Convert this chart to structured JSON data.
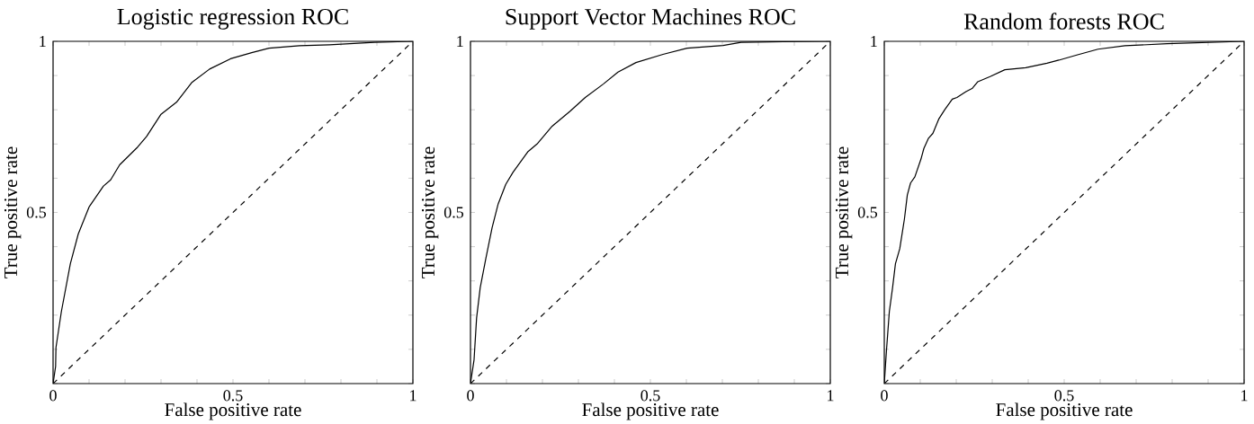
{
  "chart_data": [
    {
      "type": "line",
      "title": "Logistic regression ROC",
      "xlabel": "False positive rate",
      "ylabel": "True positive rate",
      "xlim": [
        0,
        1
      ],
      "ylim": [
        0,
        1
      ],
      "xticks": [
        0,
        {
          "value": 0.1,
          "label": null
        },
        {
          "value": 0.2,
          "label": null
        },
        {
          "value": 0.3,
          "label": null
        },
        {
          "value": 0.4,
          "label": null
        },
        0.5,
        {
          "value": 0.6,
          "label": null
        },
        {
          "value": 0.7,
          "label": null
        },
        {
          "value": 0.8,
          "label": null
        },
        {
          "value": 0.9,
          "label": null
        },
        1
      ],
      "yticks": [
        {
          "value": 0,
          "label": null
        },
        {
          "value": 0.1,
          "label": null
        },
        {
          "value": 0.2,
          "label": null
        },
        {
          "value": 0.3,
          "label": null
        },
        {
          "value": 0.4,
          "label": null
        },
        0.5,
        {
          "value": 0.6,
          "label": null
        },
        {
          "value": 0.7,
          "label": null
        },
        {
          "value": 0.8,
          "label": null
        },
        {
          "value": 0.9,
          "label": null
        },
        1
      ],
      "series": [
        {
          "color": "#000000",
          "line_style": "solid",
          "x": [
            0,
            0.007,
            0.008,
            0.023,
            0.048,
            0.07,
            0.1,
            0.14,
            0.16,
            0.185,
            0.235,
            0.26,
            0.3,
            0.343,
            0.385,
            0.435,
            0.493,
            0.552,
            0.6,
            0.685,
            0.768,
            0.893,
            1
          ],
          "values": [
            0,
            0.05,
            0.105,
            0.21,
            0.35,
            0.437,
            0.516,
            0.577,
            0.595,
            0.639,
            0.691,
            0.722,
            0.787,
            0.822,
            0.879,
            0.919,
            0.949,
            0.967,
            0.98,
            0.987,
            0.99,
            0.997,
            1
          ]
        },
        {
          "color": "#000000",
          "line_style": "dashed",
          "x": [
            0,
            1
          ],
          "values": [
            0,
            1
          ]
        }
      ]
    },
    {
      "type": "line",
      "title": "Support Vector Machines ROC",
      "xlabel": "False positive rate",
      "ylabel": "True positive rate",
      "xlim": [
        0,
        1
      ],
      "ylim": [
        0,
        1
      ],
      "xticks": [
        0,
        {
          "value": 0.1,
          "label": null
        },
        {
          "value": 0.2,
          "label": null
        },
        {
          "value": 0.3,
          "label": null
        },
        {
          "value": 0.4,
          "label": null
        },
        0.5,
        {
          "value": 0.6,
          "label": null
        },
        {
          "value": 0.7,
          "label": null
        },
        {
          "value": 0.8,
          "label": null
        },
        {
          "value": 0.9,
          "label": null
        },
        1
      ],
      "yticks": [
        {
          "value": 0,
          "label": null
        },
        {
          "value": 0.1,
          "label": null
        },
        {
          "value": 0.2,
          "label": null
        },
        {
          "value": 0.3,
          "label": null
        },
        {
          "value": 0.4,
          "label": null
        },
        0.5,
        {
          "value": 0.6,
          "label": null
        },
        {
          "value": 0.7,
          "label": null
        },
        {
          "value": 0.8,
          "label": null
        },
        {
          "value": 0.9,
          "label": null
        },
        1
      ],
      "series": [
        {
          "color": "#000000",
          "line_style": "solid",
          "x": [
            0,
            0.01,
            0.017,
            0.027,
            0.043,
            0.06,
            0.077,
            0.098,
            0.118,
            0.16,
            0.185,
            0.227,
            0.277,
            0.319,
            0.369,
            0.41,
            0.46,
            0.535,
            0.602,
            0.702,
            0.752,
            0.869,
            1
          ],
          "values": [
            0,
            0.07,
            0.192,
            0.28,
            0.367,
            0.455,
            0.525,
            0.582,
            0.617,
            0.678,
            0.7,
            0.752,
            0.796,
            0.836,
            0.875,
            0.91,
            0.938,
            0.962,
            0.98,
            0.988,
            0.997,
            0.999,
            1
          ]
        },
        {
          "color": "#000000",
          "line_style": "dashed",
          "x": [
            0,
            1
          ],
          "values": [
            0,
            1
          ]
        }
      ]
    },
    {
      "type": "line",
      "title": "Random forests ROC",
      "xlabel": "False positive rate",
      "ylabel": "True positive rate",
      "xlim": [
        0,
        1
      ],
      "ylim": [
        0,
        1
      ],
      "xticks": [
        0,
        {
          "value": 0.1,
          "label": null
        },
        {
          "value": 0.2,
          "label": null
        },
        {
          "value": 0.3,
          "label": null
        },
        {
          "value": 0.4,
          "label": null
        },
        0.5,
        {
          "value": 0.6,
          "label": null
        },
        {
          "value": 0.7,
          "label": null
        },
        {
          "value": 0.8,
          "label": null
        },
        {
          "value": 0.9,
          "label": null
        },
        1
      ],
      "yticks": [
        {
          "value": 0,
          "label": null
        },
        {
          "value": 0.1,
          "label": null
        },
        {
          "value": 0.2,
          "label": null
        },
        {
          "value": 0.3,
          "label": null
        },
        {
          "value": 0.4,
          "label": null
        },
        0.5,
        {
          "value": 0.6,
          "label": null
        },
        {
          "value": 0.7,
          "label": null
        },
        {
          "value": 0.8,
          "label": null
        },
        {
          "value": 0.9,
          "label": null
        },
        1
      ],
      "series": [
        {
          "color": "#000000",
          "line_style": "solid",
          "x": [
            0,
            0.006,
            0.014,
            0.023,
            0.031,
            0.043,
            0.056,
            0.064,
            0.073,
            0.085,
            0.102,
            0.11,
            0.123,
            0.135,
            0.152,
            0.168,
            0.189,
            0.202,
            0.227,
            0.244,
            0.26,
            0.294,
            0.335,
            0.393,
            0.452,
            0.485,
            0.535,
            0.594,
            0.669,
            0.786,
            1
          ],
          "values": [
            0,
            0.096,
            0.21,
            0.28,
            0.35,
            0.394,
            0.481,
            0.551,
            0.586,
            0.604,
            0.656,
            0.687,
            0.717,
            0.731,
            0.774,
            0.8,
            0.831,
            0.836,
            0.853,
            0.862,
            0.882,
            0.897,
            0.917,
            0.923,
            0.936,
            0.945,
            0.96,
            0.977,
            0.987,
            0.993,
            1
          ]
        },
        {
          "color": "#000000",
          "line_style": "dashed",
          "x": [
            0,
            1
          ],
          "values": [
            0,
            1
          ]
        }
      ]
    }
  ]
}
